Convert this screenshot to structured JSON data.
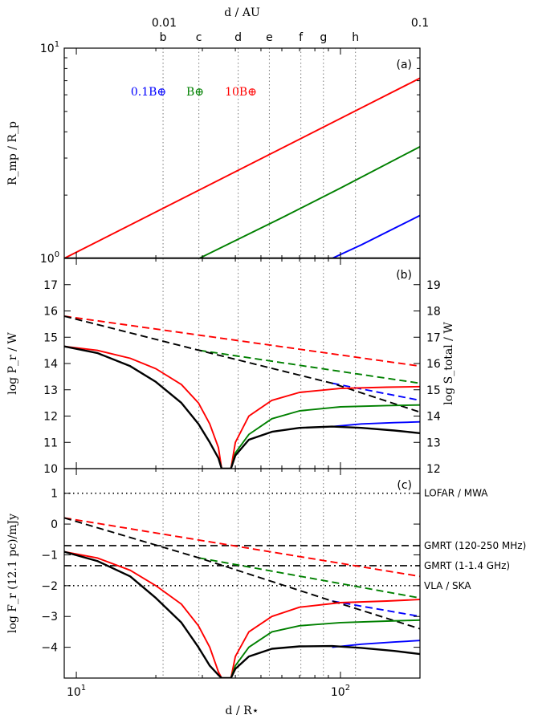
{
  "chart_data": [
    {
      "panel": "a",
      "type": "line",
      "panel_label": "(a)",
      "xscale": "log",
      "yscale": "log",
      "xlim": [
        9,
        200
      ],
      "ylim": [
        1,
        10
      ],
      "ylabel": "R_mp / R_p",
      "yticks": [
        {
          "v": 1,
          "base": "10",
          "exp": "0"
        },
        {
          "v": 10,
          "base": "10",
          "exp": "1"
        }
      ],
      "top_axis": {
        "label": "d / AU",
        "tick_labels": [
          {
            "label": "0.01",
            "x_rstar": 21.5
          },
          {
            "label": "0.1",
            "x_rstar": 215
          }
        ],
        "planets": [
          {
            "name": "b",
            "x": 21.3
          },
          {
            "name": "c",
            "x": 29.1
          },
          {
            "name": "d",
            "x": 41
          },
          {
            "name": "e",
            "x": 53.8
          },
          {
            "name": "f",
            "x": 70.8
          },
          {
            "name": "g",
            "x": 86.2
          },
          {
            "name": "h",
            "x": 114
          }
        ]
      },
      "legend": [
        {
          "name": "0.1B⊕",
          "color": "#0000ff"
        },
        {
          "name": "B⊕",
          "color": "#008000"
        },
        {
          "name": "10B⊕",
          "color": "#ff0000"
        }
      ],
      "series": [
        {
          "color": "#ff0000",
          "style": "solid",
          "x": [
            9,
            200
          ],
          "y": [
            1,
            7.2
          ]
        },
        {
          "color": "#008000",
          "style": "solid",
          "x": [
            9,
            29.2,
            60,
            100,
            200
          ],
          "y": [
            1,
            1,
            1.56,
            2.16,
            3.4
          ]
        },
        {
          "color": "#0000ff",
          "style": "solid",
          "x": [
            9,
            93,
            120,
            160,
            200
          ],
          "y": [
            1,
            1,
            1.16,
            1.39,
            1.6
          ]
        },
        {
          "color": "#000000",
          "style": "solid",
          "x": [
            9,
            200
          ],
          "y": [
            1,
            1
          ]
        }
      ]
    },
    {
      "panel": "b",
      "type": "line",
      "panel_label": "(b)",
      "xscale": "log",
      "yscale": "linear",
      "xlim": [
        9,
        200
      ],
      "ylim": [
        10,
        18
      ],
      "ylabel": "log P_r / W",
      "yticks": [
        10,
        11,
        12,
        13,
        14,
        15,
        16,
        17
      ],
      "y2label": "log S_total / W",
      "y2lim": [
        12,
        20
      ],
      "y2ticks": [
        12,
        13,
        14,
        15,
        16,
        17,
        18,
        19
      ],
      "series": [
        {
          "color": "#ff0000",
          "style": "dashed",
          "x": [
            9,
            200
          ],
          "y": [
            15.8,
            13.9
          ]
        },
        {
          "color": "#008000",
          "style": "dashed",
          "x": [
            29.2,
            200
          ],
          "y": [
            14.5,
            13.25
          ]
        },
        {
          "color": "#0000ff",
          "style": "dashed",
          "x": [
            93,
            200
          ],
          "y": [
            13.25,
            12.6
          ]
        },
        {
          "color": "#000000",
          "style": "dashed",
          "x": [
            9,
            29.2,
            93,
            200
          ],
          "y": [
            15.8,
            14.5,
            13.25,
            12.15
          ]
        },
        {
          "color": "#ff0000",
          "style": "solid",
          "x": [
            9,
            12,
            16,
            20,
            25,
            29,
            32,
            34.5,
            35.5,
            38.5,
            40,
            45,
            55,
            70,
            100,
            150,
            200
          ],
          "y": [
            14.65,
            14.5,
            14.2,
            13.8,
            13.2,
            12.5,
            11.7,
            10.8,
            10,
            10,
            11,
            12.0,
            12.6,
            12.9,
            13.05,
            13.1,
            13.12
          ]
        },
        {
          "color": "#008000",
          "style": "solid",
          "x": [
            38.5,
            40,
            45,
            55,
            70,
            100,
            150,
            200
          ],
          "y": [
            10,
            10.6,
            11.3,
            11.9,
            12.2,
            12.35,
            12.4,
            12.42
          ]
        },
        {
          "color": "#0000ff",
          "style": "solid",
          "x": [
            93,
            120,
            160,
            200
          ],
          "y": [
            11.6,
            11.7,
            11.75,
            11.78
          ]
        },
        {
          "color": "#000000",
          "style": "solid",
          "x": [
            9,
            12,
            16,
            20,
            25,
            29,
            32,
            34.5,
            35.5,
            38.5,
            40,
            45,
            55,
            70,
            93,
            120,
            160,
            200
          ],
          "y": [
            14.65,
            14.4,
            13.9,
            13.3,
            12.5,
            11.7,
            11.0,
            10.4,
            10,
            10,
            10.5,
            11.1,
            11.4,
            11.55,
            11.6,
            11.55,
            11.45,
            11.35
          ]
        }
      ]
    },
    {
      "panel": "c",
      "type": "line",
      "panel_label": "(c)",
      "xscale": "log",
      "yscale": "linear",
      "xlim": [
        9,
        200
      ],
      "ylim": [
        -5,
        1.8
      ],
      "ylabel": "log F_r (12.1 pc)/mJy",
      "xlabel": "d / R⋆",
      "xticks": [
        {
          "v": 10,
          "base": "10",
          "exp": "1"
        },
        {
          "v": 100,
          "base": "10",
          "exp": "2"
        }
      ],
      "yticks": [
        -4,
        -3,
        -2,
        -1,
        0,
        1
      ],
      "thresholds": [
        {
          "label": "LOFAR / MWA",
          "y": 1.0,
          "style": "dotted"
        },
        {
          "label": "GMRT (120-250 MHz)",
          "y": -0.7,
          "style": "dashed"
        },
        {
          "label": "GMRT (1-1.4 GHz)",
          "y": -1.35,
          "style": "dashdot"
        },
        {
          "label": "VLA / SKA",
          "y": -2.0,
          "style": "dotted"
        }
      ],
      "series": [
        {
          "color": "#ff0000",
          "style": "dashed",
          "x": [
            9,
            200
          ],
          "y": [
            0.2,
            -1.7
          ]
        },
        {
          "color": "#008000",
          "style": "dashed",
          "x": [
            29.2,
            200
          ],
          "y": [
            -1.1,
            -2.4
          ]
        },
        {
          "color": "#0000ff",
          "style": "dashed",
          "x": [
            93,
            200
          ],
          "y": [
            -2.5,
            -3.0
          ]
        },
        {
          "color": "#000000",
          "style": "dashed",
          "x": [
            9,
            29.2,
            93,
            200
          ],
          "y": [
            0.2,
            -1.1,
            -2.5,
            -3.4
          ]
        },
        {
          "color": "#ff0000",
          "style": "solid",
          "x": [
            9,
            12,
            16,
            20,
            25,
            29,
            32,
            34.5,
            35.5,
            38.5,
            40,
            45,
            55,
            70,
            100,
            150,
            200
          ],
          "y": [
            -0.9,
            -1.1,
            -1.5,
            -2.0,
            -2.6,
            -3.3,
            -4.0,
            -4.8,
            -5,
            -5,
            -4.3,
            -3.5,
            -3.0,
            -2.7,
            -2.55,
            -2.5,
            -2.45
          ]
        },
        {
          "color": "#008000",
          "style": "solid",
          "x": [
            38.5,
            40,
            45,
            55,
            70,
            100,
            150,
            200
          ],
          "y": [
            -5,
            -4.6,
            -4.0,
            -3.5,
            -3.3,
            -3.2,
            -3.15,
            -3.12
          ]
        },
        {
          "color": "#0000ff",
          "style": "solid",
          "x": [
            93,
            120,
            160,
            200
          ],
          "y": [
            -4.0,
            -3.9,
            -3.83,
            -3.78
          ]
        },
        {
          "color": "#000000",
          "style": "solid",
          "x": [
            9,
            12,
            16,
            20,
            25,
            29,
            32,
            34.5,
            35.5,
            38.5,
            40,
            45,
            55,
            70,
            93,
            120,
            160,
            200
          ],
          "y": [
            -0.9,
            -1.2,
            -1.7,
            -2.4,
            -3.2,
            -4.0,
            -4.6,
            -4.9,
            -5,
            -5,
            -4.7,
            -4.3,
            -4.05,
            -3.97,
            -3.96,
            -4.02,
            -4.12,
            -4.22
          ]
        }
      ]
    }
  ]
}
